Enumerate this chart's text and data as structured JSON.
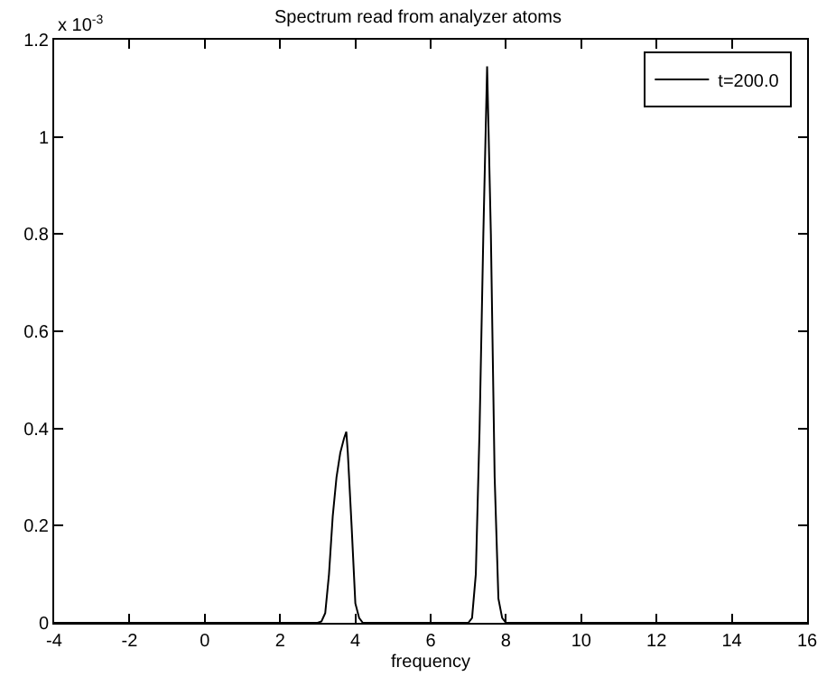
{
  "chart_data": {
    "type": "line",
    "title": "Spectrum read from analyzer atoms",
    "xlabel": "frequency",
    "annotations": [
      "x 10$^{-3}$"
    ],
    "x": [
      -4,
      3.0,
      3.1,
      3.2,
      3.3,
      3.4,
      3.5,
      3.6,
      3.7,
      3.76,
      3.8,
      3.9,
      4.0,
      4.1,
      4.2,
      7.0,
      7.1,
      7.2,
      7.3,
      7.4,
      7.5,
      7.6,
      7.7,
      7.8,
      7.9,
      8.0,
      16
    ],
    "series": [
      {
        "name": "t=200.0",
        "color": "#000000",
        "values": [
          0,
          0,
          0.003,
          0.02,
          0.1,
          0.22,
          0.3,
          0.35,
          0.38,
          0.393,
          0.35,
          0.2,
          0.04,
          0.01,
          0,
          0,
          0.01,
          0.1,
          0.4,
          0.8,
          1.145,
          0.8,
          0.3,
          0.05,
          0.01,
          0,
          0
        ]
      }
    ],
    "xlim": [
      -4,
      16
    ],
    "xticks": [
      -4,
      -2,
      0,
      2,
      4,
      6,
      8,
      10,
      12,
      14,
      16
    ],
    "ylim": [
      0,
      1.2
    ],
    "yticks": [
      0,
      0.2,
      0.4,
      0.6,
      0.8,
      1,
      1.2
    ],
    "legend": "top right"
  }
}
